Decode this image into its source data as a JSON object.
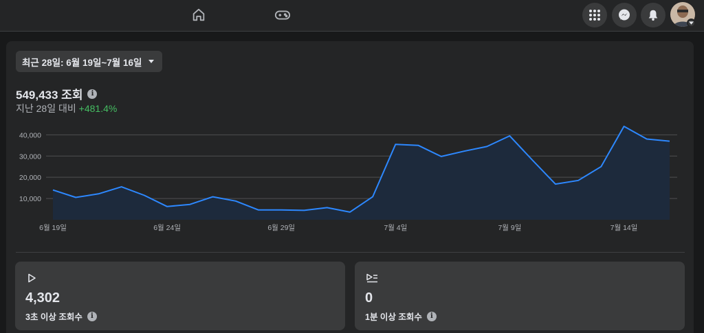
{
  "header": {
    "nav": [
      {
        "icon": "home-icon"
      },
      {
        "icon": "gaming-icon"
      }
    ],
    "actions": [
      {
        "icon": "menu-grid-icon"
      },
      {
        "icon": "messenger-icon"
      },
      {
        "icon": "bell-icon"
      }
    ]
  },
  "filter": {
    "range_label": "최근 28일: 6월 19일~7월 16일"
  },
  "summary": {
    "views_total": "549,433 조회",
    "compare_prefix": "지난 28일 대비 ",
    "compare_change": "+481.4%"
  },
  "colors": {
    "line": "#2d88ff",
    "positive": "#45bd62"
  },
  "chart_data": {
    "type": "area",
    "x": [
      "6월 19일",
      "6월 20일",
      "6월 21일",
      "6월 22일",
      "6월 23일",
      "6월 24일",
      "6월 25일",
      "6월 26일",
      "6월 27일",
      "6월 28일",
      "6월 29일",
      "6월 30일",
      "7월 1일",
      "7월 2일",
      "7월 3일",
      "7월 4일",
      "7월 5일",
      "7월 6일",
      "7월 7일",
      "7월 8일",
      "7월 9일",
      "7월 10일",
      "7월 11일",
      "7월 12일",
      "7월 13일",
      "7월 14일",
      "7월 15일",
      "7월 16일"
    ],
    "y": [
      14000,
      10500,
      12200,
      15500,
      11500,
      6200,
      7200,
      10800,
      8800,
      4600,
      4600,
      4400,
      5700,
      3600,
      10800,
      35500,
      35000,
      29800,
      32300,
      34500,
      39500,
      28000,
      16800,
      18500,
      25000,
      44000,
      38000,
      37000
    ],
    "x_tick_labels": [
      "6월 19일",
      "6월 24일",
      "6월 29일",
      "7월 4일",
      "7월 9일",
      "7월 14일"
    ],
    "y_tick_labels": [
      "10,000",
      "20,000",
      "30,000",
      "40,000"
    ],
    "y_ticks": [
      10000,
      20000,
      30000,
      40000
    ],
    "ylim": [
      0,
      44000
    ],
    "grid": true
  },
  "stats": [
    {
      "icon": "play-icon",
      "value": "4,302",
      "label": "3초 이상 조회수"
    },
    {
      "icon": "play-list-icon",
      "value": "0",
      "label": "1분 이상 조회수"
    }
  ]
}
